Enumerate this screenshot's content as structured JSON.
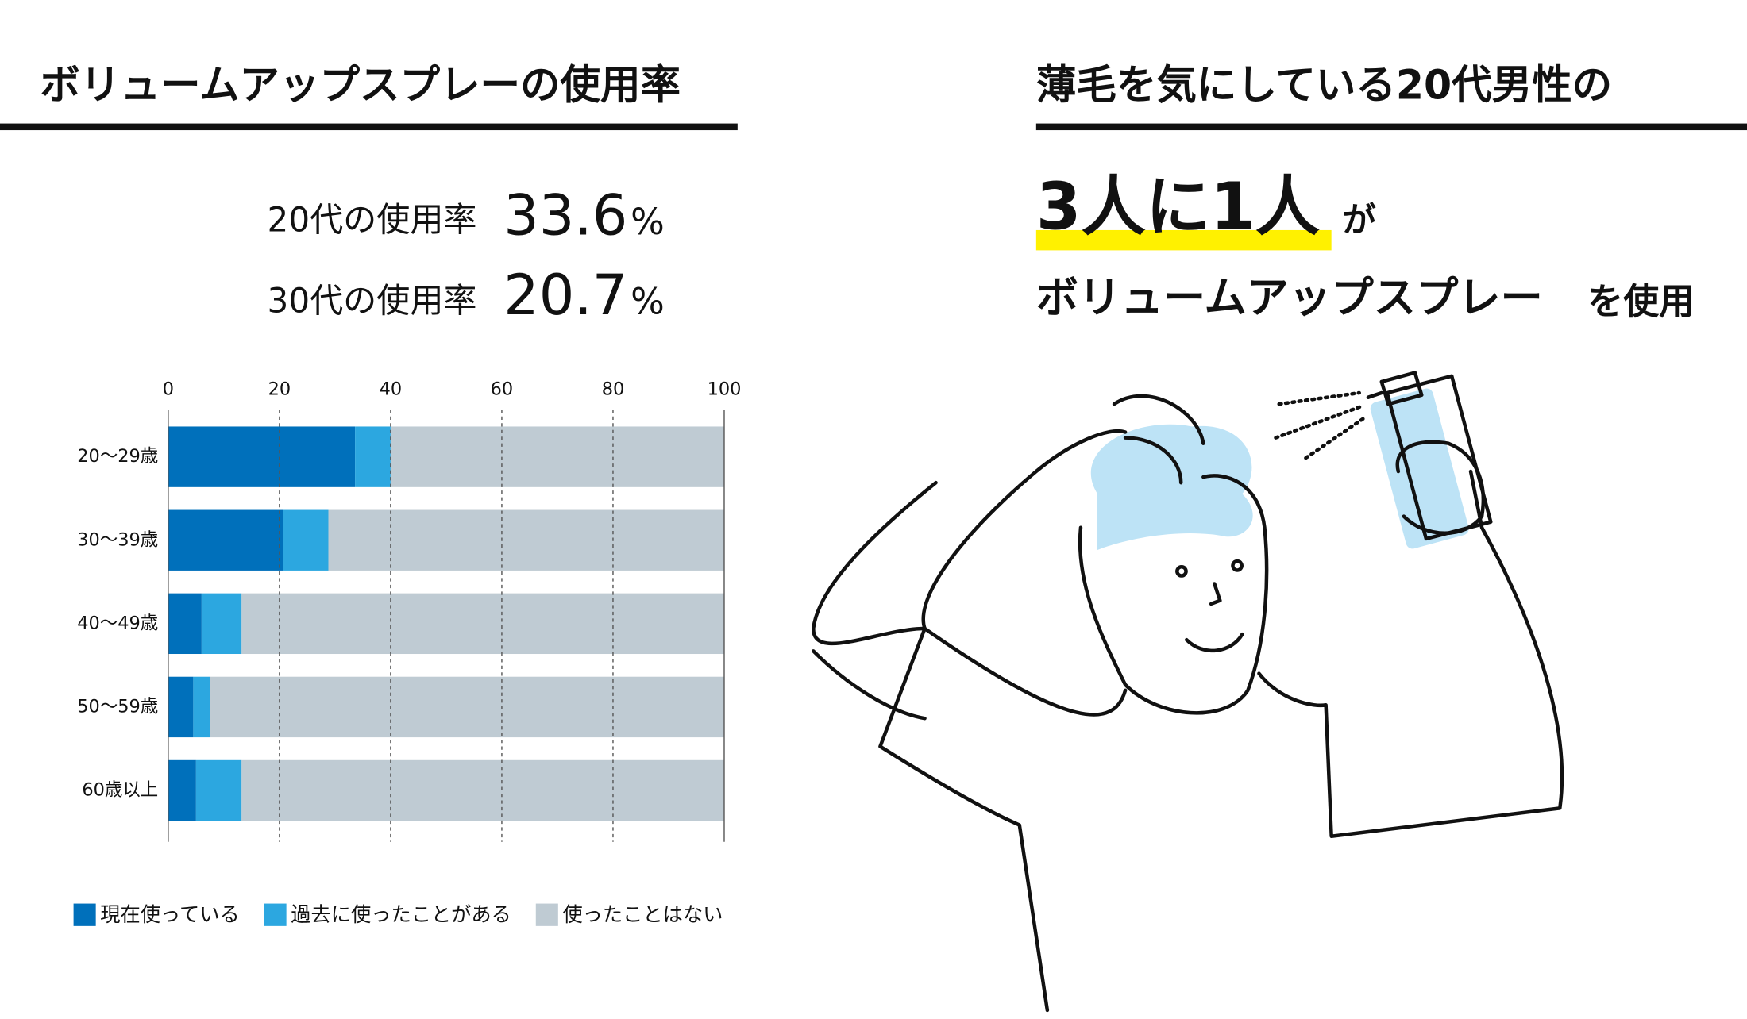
{
  "left_title": "ボリュームアップスプレーの使用率",
  "stats": [
    {
      "label": "20代の使用率",
      "value": 33.6,
      "unit": "%"
    },
    {
      "label": "30代の使用率",
      "value": 20.7,
      "unit": "%"
    }
  ],
  "right_title": "薄毛を気にしている20代男性の",
  "headline": {
    "emphasis": "3人に1人",
    "particle": "が",
    "line2": "ボリュームアップスプレー",
    "line2_end": "を使用"
  },
  "chart_data": {
    "type": "bar",
    "orientation": "horizontal",
    "stacked": true,
    "categories": [
      "20〜29歳",
      "30〜39歳",
      "40〜49歳",
      "50〜59歳",
      "60歳以上"
    ],
    "series": [
      {
        "name": "現在使っている",
        "color": "#0070bb",
        "values": [
          33.6,
          20.7,
          6.0,
          4.5,
          5.0
        ]
      },
      {
        "name": "過去に使ったことがある",
        "color": "#2ca7e0",
        "values": [
          6.4,
          8.1,
          7.2,
          3.0,
          8.2
        ]
      },
      {
        "name": "使ったことはない",
        "color": "#bfcbd3",
        "values": [
          60.0,
          71.2,
          86.8,
          92.5,
          86.8
        ]
      }
    ],
    "xlim": [
      0,
      100
    ],
    "xticks": [
      0,
      20,
      40,
      60,
      80,
      100
    ],
    "grid": true,
    "legend": "bottom"
  }
}
